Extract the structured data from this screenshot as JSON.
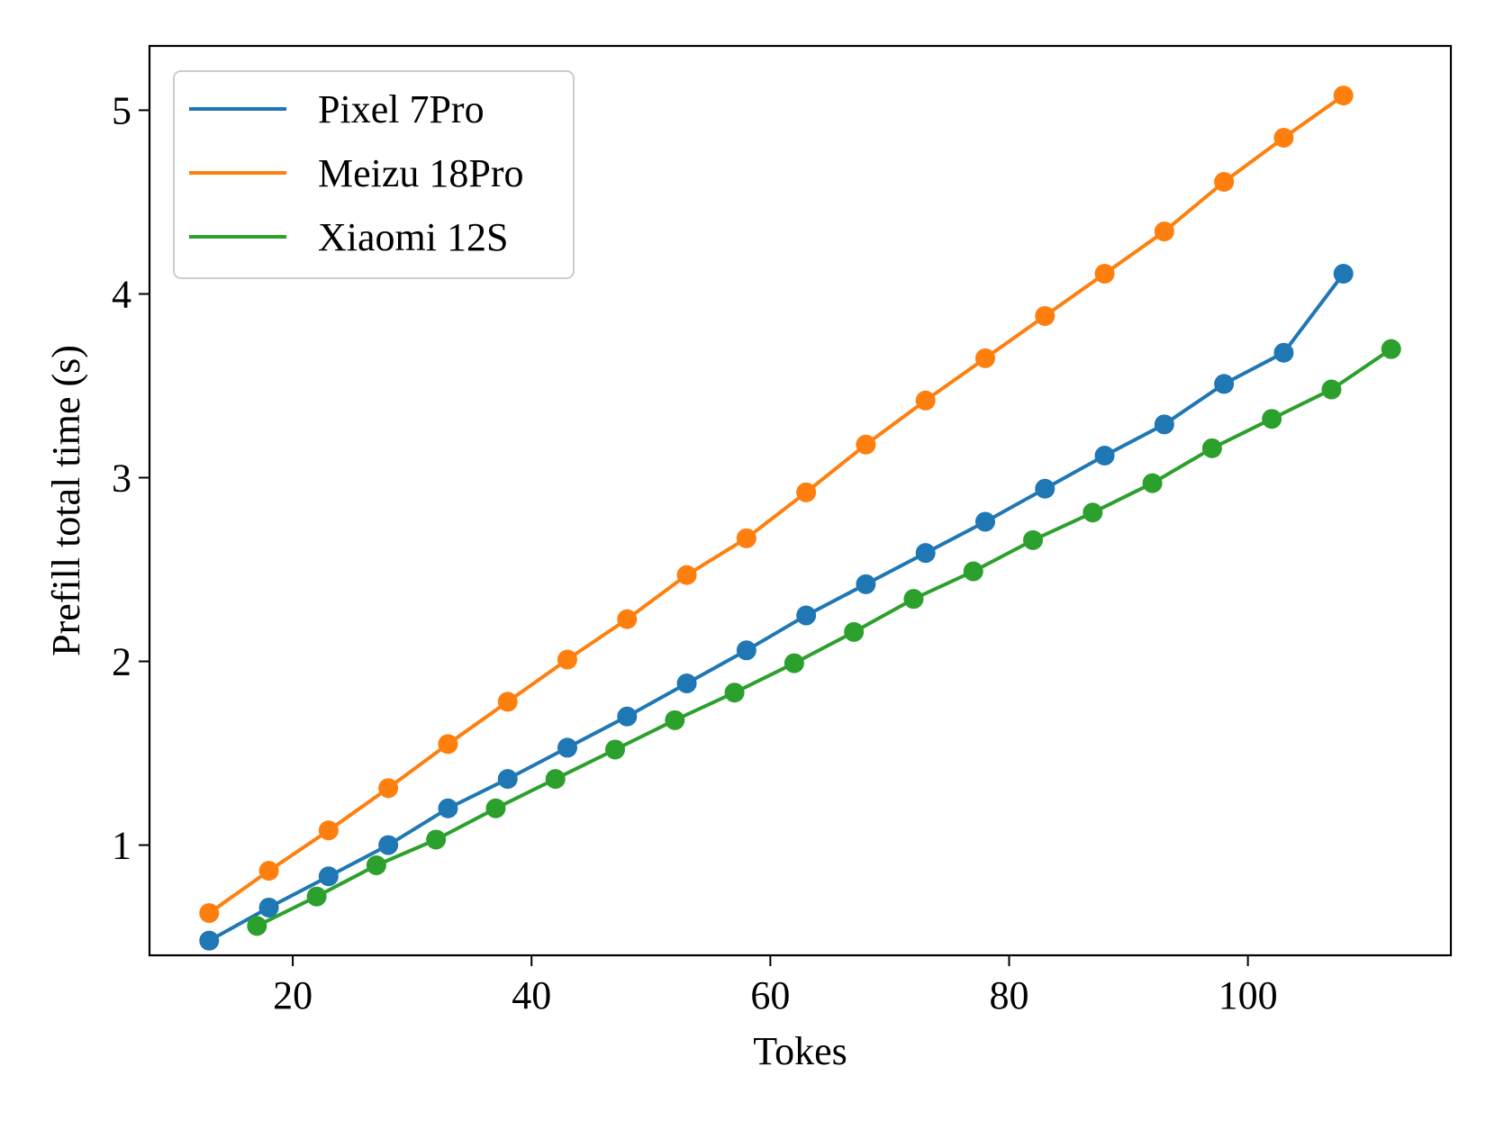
{
  "chart_data": {
    "type": "line",
    "title": "",
    "xlabel": "Tokes",
    "ylabel": "Prefill total time (s)",
    "xlim": [
      8,
      117
    ],
    "ylim": [
      0.4,
      5.35
    ],
    "xticks": [
      20,
      40,
      60,
      80,
      100
    ],
    "yticks": [
      1,
      2,
      3,
      4,
      5
    ],
    "grid": false,
    "legend_position": "top-left",
    "series": [
      {
        "name": "Pixel 7Pro",
        "color": "#1f77b4",
        "x": [
          13,
          18,
          23,
          28,
          33,
          38,
          43,
          48,
          53,
          58,
          63,
          68,
          73,
          78,
          83,
          88,
          93,
          98,
          103,
          108
        ],
        "y": [
          0.48,
          0.66,
          0.83,
          1.0,
          1.2,
          1.36,
          1.53,
          1.7,
          1.88,
          2.06,
          2.25,
          2.42,
          2.59,
          2.76,
          2.94,
          3.12,
          3.29,
          3.51,
          3.68,
          4.11
        ]
      },
      {
        "name": "Meizu 18Pro",
        "color": "#ff7f0e",
        "x": [
          13,
          18,
          23,
          28,
          33,
          38,
          43,
          48,
          53,
          58,
          63,
          68,
          73,
          78,
          83,
          88,
          93,
          98,
          103,
          108
        ],
        "y": [
          0.63,
          0.86,
          1.08,
          1.31,
          1.55,
          1.78,
          2.01,
          2.23,
          2.47,
          2.67,
          2.92,
          3.18,
          3.42,
          3.65,
          3.88,
          4.11,
          4.34,
          4.61,
          4.85,
          5.08
        ]
      },
      {
        "name": "Xiaomi 12S",
        "color": "#2ca02c",
        "x": [
          17,
          22,
          27,
          32,
          37,
          42,
          47,
          52,
          57,
          62,
          67,
          72,
          77,
          82,
          87,
          92,
          97,
          102,
          107,
          112
        ],
        "y": [
          0.56,
          0.72,
          0.89,
          1.03,
          1.2,
          1.36,
          1.52,
          1.68,
          1.83,
          1.99,
          2.16,
          2.34,
          2.49,
          2.66,
          2.81,
          2.97,
          3.16,
          3.32,
          3.48,
          3.7
        ]
      }
    ]
  }
}
